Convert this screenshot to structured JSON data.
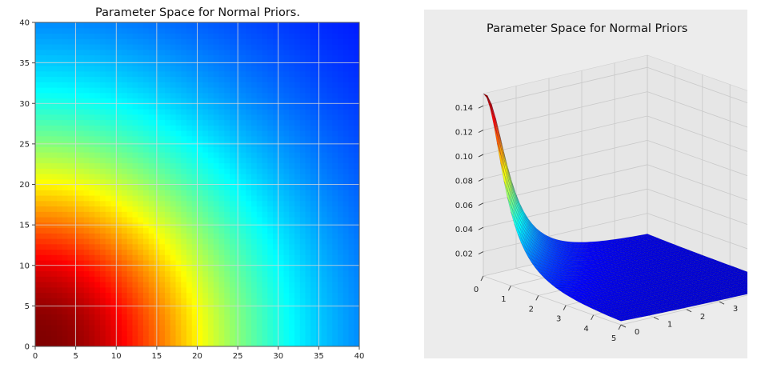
{
  "chart_data": [
    {
      "type": "heatmap",
      "title": "Parameter Space for Normal Priors.",
      "xlabel": "",
      "ylabel": "",
      "xlim": [
        0,
        40
      ],
      "ylim": [
        0,
        40
      ],
      "xticks": [
        "0",
        "5",
        "10",
        "15",
        "20",
        "25",
        "30",
        "35",
        "40"
      ],
      "yticks": [
        "0",
        "5",
        "10",
        "15",
        "20",
        "25",
        "30",
        "35",
        "40"
      ],
      "grid": true,
      "colormap": "jet",
      "z_peak_at": [
        0,
        0
      ],
      "z_function": "density decreasing with distance from origin; yellow band near radius 20, cyan near radius 27"
    },
    {
      "type": "surface3d",
      "title": "Parameter Space for Normal Priors",
      "xlim": [
        0,
        5
      ],
      "ylim": [
        0,
        5
      ],
      "zlim": [
        0,
        0.15
      ],
      "xticks": [
        "0",
        "1",
        "2",
        "3",
        "4",
        "5"
      ],
      "yticks": [
        "0",
        "1",
        "2",
        "3",
        "4",
        "5"
      ],
      "zticks": [
        "0.02",
        "0.04",
        "0.06",
        "0.08",
        "0.10",
        "0.12",
        "0.14"
      ],
      "z_peak": 0.15,
      "peak_at": [
        0,
        0
      ],
      "colormap": "jet",
      "grid": true
    }
  ]
}
